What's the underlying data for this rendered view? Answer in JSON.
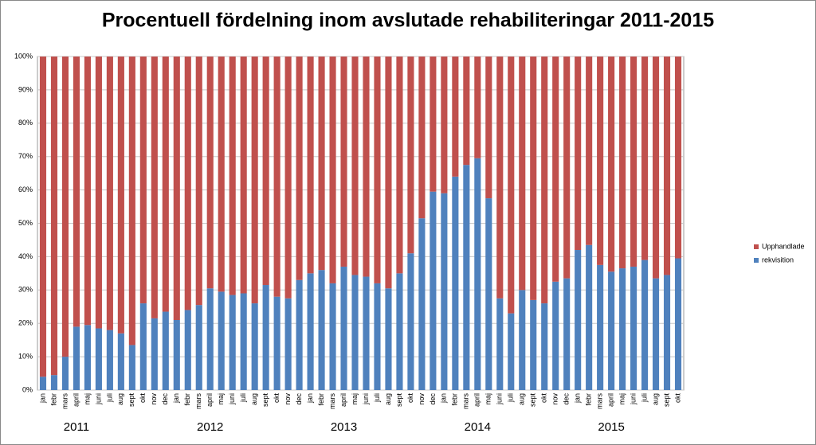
{
  "chart_data": {
    "type": "bar",
    "stacked": true,
    "title": "Procentuell fördelning inom avslutade rehabiliteringar 2011-2015",
    "categories": [
      "jan",
      "febr",
      "mars",
      "april",
      "maj",
      "juni",
      "juli",
      "aug",
      "sept",
      "okt",
      "nov",
      "dec",
      "jan",
      "febr",
      "mars",
      "april",
      "maj",
      "juni",
      "juli",
      "aug",
      "sept",
      "okt",
      "nov",
      "dec",
      "jan",
      "febr",
      "mars",
      "april",
      "maj",
      "juni",
      "juli",
      "aug",
      "sept",
      "okt",
      "nov",
      "dec",
      "jan",
      "febr",
      "mars",
      "april",
      "maj",
      "juni",
      "juli",
      "aug",
      "sept",
      "okt",
      "nov",
      "dec",
      "jan",
      "febr",
      "mars",
      "april",
      "maj",
      "juni",
      "juli",
      "aug",
      "sept",
      "okt"
    ],
    "year_labels": [
      "2011",
      "2012",
      "2013",
      "2014",
      "2015"
    ],
    "series": [
      {
        "name": "rekvisition",
        "color": "#4f81bd",
        "values": [
          4,
          4.5,
          10,
          19,
          19.5,
          18.5,
          18,
          17,
          13.5,
          26,
          21.5,
          23.5,
          21,
          24,
          25.5,
          30.5,
          29.5,
          28.5,
          29,
          26,
          31.5,
          28,
          27.5,
          33,
          35,
          36,
          32,
          37,
          34.5,
          34,
          32,
          30.5,
          35,
          41,
          51.5,
          59.5,
          59,
          64,
          67.5,
          69.5,
          57.5,
          27.5,
          23,
          30,
          27,
          26,
          32.5,
          33.5,
          42,
          43.5,
          37.5,
          35.5,
          36.5,
          37,
          39,
          33.5,
          34.5,
          39.5
        ]
      },
      {
        "name": "Upphandlade",
        "color": "#c0504d",
        "values": [
          96,
          95.5,
          90,
          81,
          80.5,
          81.5,
          82,
          83,
          86.5,
          74,
          78.5,
          76.5,
          79,
          76,
          74.5,
          69.5,
          70.5,
          71.5,
          71,
          74,
          68.5,
          72,
          72.5,
          67,
          65,
          64,
          68,
          63,
          65.5,
          66,
          68,
          69.5,
          65,
          59,
          48.5,
          40.5,
          41,
          36,
          32.5,
          30.5,
          42.5,
          72.5,
          77,
          70,
          73,
          74,
          67.5,
          66.5,
          58,
          56.5,
          62.5,
          64.5,
          63.5,
          63,
          61,
          66.5,
          65.5,
          60.5
        ]
      }
    ],
    "ylim": [
      0,
      100
    ],
    "yticks": [
      {
        "value": 0,
        "label": "0%"
      },
      {
        "value": 10,
        "label": "10%"
      },
      {
        "value": 20,
        "label": "20%"
      },
      {
        "value": 30,
        "label": "30%"
      },
      {
        "value": 40,
        "label": "40%"
      },
      {
        "value": 50,
        "label": "50%"
      },
      {
        "value": 60,
        "label": "60%"
      },
      {
        "value": 70,
        "label": "70%"
      },
      {
        "value": 80,
        "label": "80%"
      },
      {
        "value": 90,
        "label": "90%"
      },
      {
        "value": 100,
        "label": "100%"
      }
    ],
    "grid": true,
    "legend": "right"
  }
}
